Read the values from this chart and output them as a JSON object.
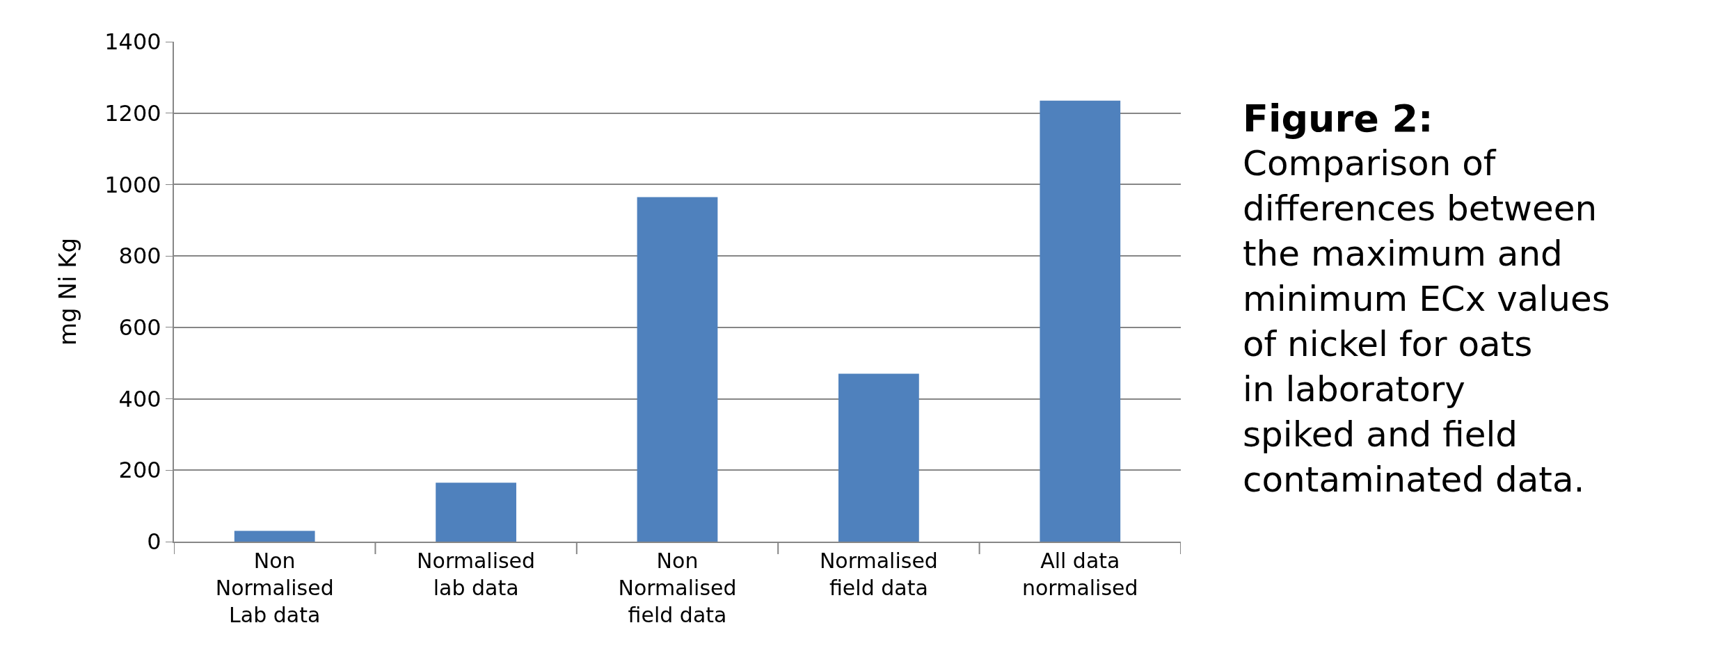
{
  "chart_data": {
    "type": "bar",
    "title": "Figure 2:",
    "ylabel": "mg Ni Kg",
    "annotations": [
      "Comparison of differences between the maximum and minimum ECx values of nickel for oats in laboratory spiked and field contaminated data."
    ],
    "categories": [
      "Non Normalised Lab data",
      "Normalised lab data",
      "Non Normalised field data",
      "Normalised field data",
      "All data normalised"
    ],
    "values": [
      30,
      165,
      965,
      470,
      1235
    ],
    "color": "#4f81bd",
    "ylim": [
      0,
      1400
    ],
    "yticks": [
      0,
      200,
      400,
      600,
      800,
      1000,
      1200,
      1400
    ],
    "grid": "y",
    "legend": false
  }
}
